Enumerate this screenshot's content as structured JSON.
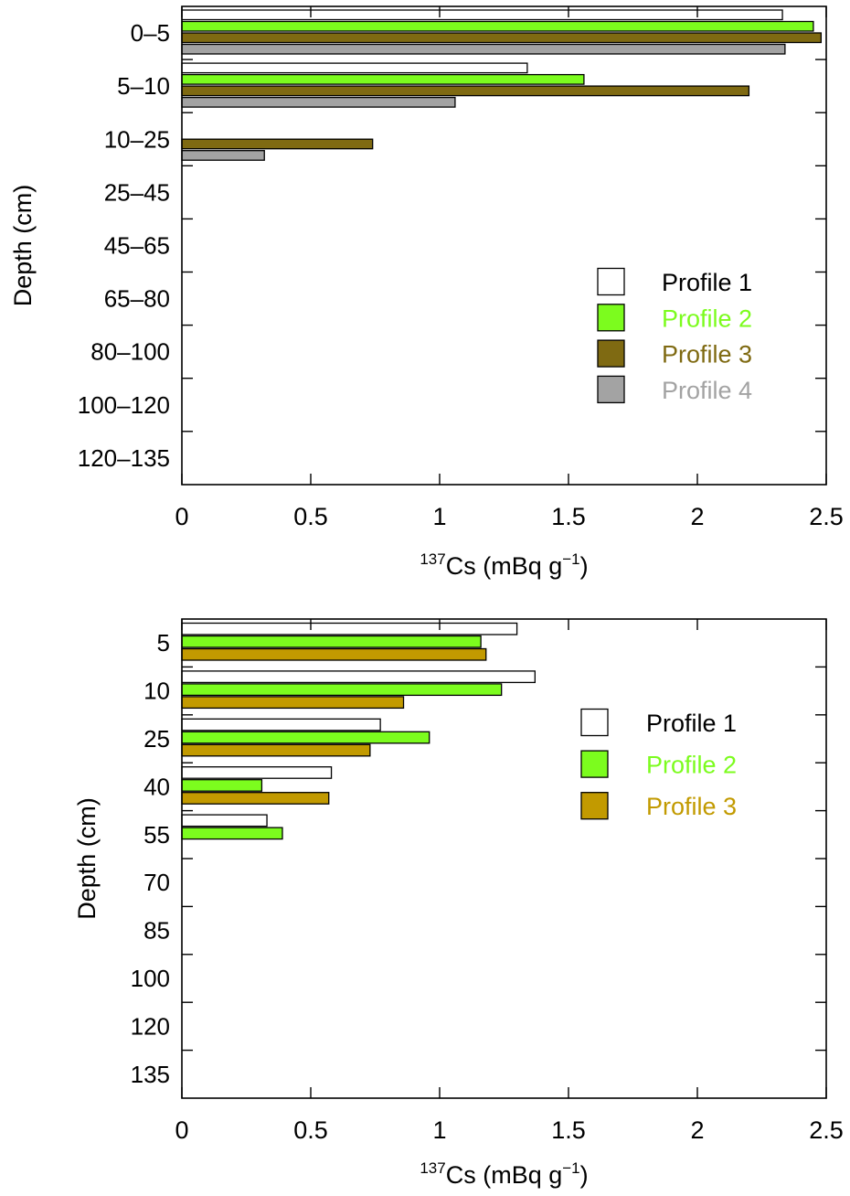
{
  "chart_data": [
    {
      "type": "bar",
      "orientation": "horizontal",
      "categories": [
        "0–5",
        "5–10",
        "10–25",
        "25–45",
        "45–65",
        "65–80",
        "80–100",
        "100–120",
        "120–135"
      ],
      "series": [
        {
          "name": "Profile 1",
          "color": "#ffffff",
          "label_color": "#000000",
          "values": [
            2.33,
            1.34,
            0,
            0,
            0,
            0,
            0,
            0,
            0
          ]
        },
        {
          "name": "Profile 2",
          "color": "#7cfc1e",
          "label_color": "#7cfc1e",
          "values": [
            2.45,
            1.56,
            0,
            0,
            0,
            0,
            0,
            0,
            0
          ]
        },
        {
          "name": "Profile 3",
          "color": "#7f6a12",
          "label_color": "#7f6a12",
          "values": [
            2.48,
            2.2,
            0.74,
            0,
            0,
            0,
            0,
            0,
            0
          ]
        },
        {
          "name": "Profile 4",
          "color": "#a3a3a3",
          "label_color": "#a3a3a3",
          "values": [
            2.34,
            1.06,
            0.32,
            0,
            0,
            0,
            0,
            0,
            0
          ]
        }
      ],
      "xlabel_sup": "137",
      "xlabel_main": "Cs (mBq g",
      "xlabel_sup2": "−1",
      "xlabel_end": ")",
      "ylabel": "Depth (cm)",
      "xlim": [
        0,
        2.5
      ],
      "xticks": [
        "0",
        "0.5",
        "1",
        "1.5",
        "2",
        "2.5"
      ],
      "grid": false,
      "legend_position": "right-middle"
    },
    {
      "type": "bar",
      "orientation": "horizontal",
      "categories": [
        "5",
        "10",
        "25",
        "40",
        "55",
        "70",
        "85",
        "100",
        "120",
        "135"
      ],
      "series": [
        {
          "name": "Profile 1",
          "color": "#ffffff",
          "label_color": "#000000",
          "values": [
            1.3,
            1.37,
            0.77,
            0.58,
            0.33,
            0,
            0,
            0,
            0,
            0
          ]
        },
        {
          "name": "Profile 2",
          "color": "#7cfc1e",
          "label_color": "#7cfc1e",
          "values": [
            1.16,
            1.24,
            0.96,
            0.31,
            0.39,
            0,
            0,
            0,
            0,
            0
          ]
        },
        {
          "name": "Profile 3",
          "color": "#c29a00",
          "label_color": "#c29a00",
          "values": [
            1.18,
            0.86,
            0.73,
            0.57,
            0,
            0,
            0,
            0,
            0,
            0
          ]
        }
      ],
      "xlabel_sup": "137",
      "xlabel_main": "Cs (mBq g",
      "xlabel_sup2": "−1",
      "xlabel_end": ")",
      "ylabel": "Depth (cm)",
      "xlim": [
        0,
        2.5
      ],
      "xticks": [
        "0",
        "0.5",
        "1",
        "1.5",
        "2",
        "2.5"
      ],
      "grid": false,
      "legend_position": "right-upper"
    }
  ]
}
